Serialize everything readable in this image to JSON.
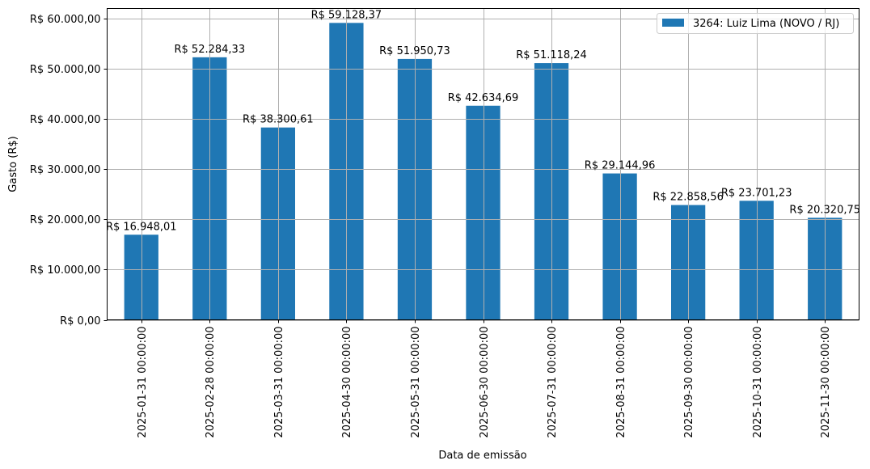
{
  "chart_data": {
    "type": "bar",
    "title": "",
    "xlabel": "Data de emissão",
    "ylabel": "Gasto (R$)",
    "ylim": [
      0,
      62000
    ],
    "grid": true,
    "legend_position": "upper right",
    "bar_color": "#1f77b4",
    "categories": [
      "2025-01-31 00:00:00",
      "2025-02-28 00:00:00",
      "2025-03-31 00:00:00",
      "2025-04-30 00:00:00",
      "2025-05-31 00:00:00",
      "2025-06-30 00:00:00",
      "2025-07-31 00:00:00",
      "2025-08-31 00:00:00",
      "2025-09-30 00:00:00",
      "2025-10-31 00:00:00",
      "2025-11-30 00:00:00"
    ],
    "series": [
      {
        "name": "3264: Luiz Lima (NOVO / RJ)",
        "values": [
          16948.01,
          52284.33,
          38300.61,
          59128.37,
          51950.73,
          42634.69,
          51118.24,
          29144.96,
          22858.56,
          23701.23,
          20320.75
        ]
      }
    ],
    "bar_labels": [
      "R$ 16.948,01",
      "R$ 52.284,33",
      "R$ 38.300,61",
      "R$ 59.128,37",
      "R$ 51.950,73",
      "R$ 42.634,69",
      "R$ 51.118,24",
      "R$ 29.144,96",
      "R$ 22.858,56",
      "R$ 23.701,23",
      "R$ 20.320,75"
    ],
    "yticks": [
      0,
      10000,
      20000,
      30000,
      40000,
      50000,
      60000
    ],
    "ytick_labels": [
      "R$ 0,00",
      "R$ 10.000,00",
      "R$ 20.000,00",
      "R$ 30.000,00",
      "R$ 40.000,00",
      "R$ 50.000,00",
      "R$ 60.000,00"
    ]
  }
}
